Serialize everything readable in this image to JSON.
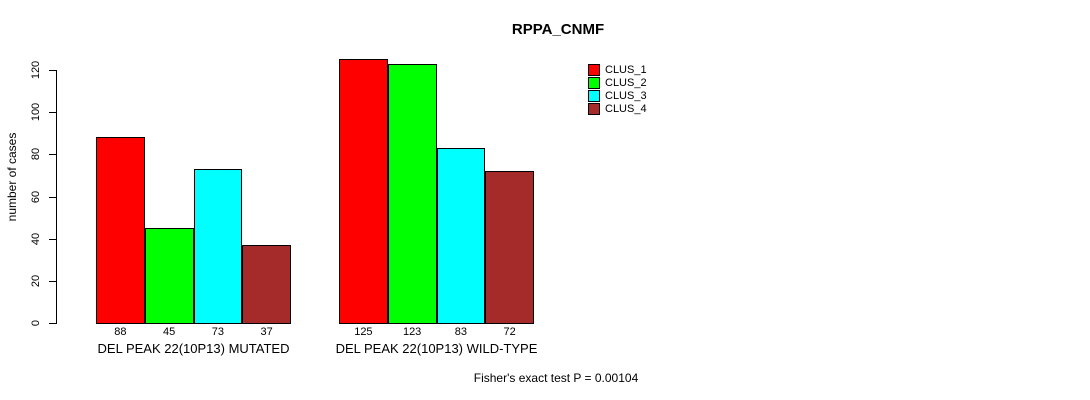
{
  "title": "RPPA_CNMF",
  "annotation": "Fisher's exact test P = 0.00104",
  "colors": {
    "clus_1": "#FF0000",
    "clus_2": "#00FF00",
    "clus_3": "#00FFFF",
    "clus_4": "#A52A2A",
    "axis": "#000000",
    "background": "#FFFFFF"
  },
  "chart_data": {
    "type": "bar",
    "title": "RPPA_CNMF",
    "xlabel": "",
    "ylabel": "number of cases",
    "ylim": [
      0,
      128
    ],
    "yticks": [
      0,
      20,
      40,
      60,
      80,
      100,
      120
    ],
    "grid": false,
    "legend_position": "right",
    "bar_value_labels": true,
    "categories": [
      "DEL PEAK 22(10P13) MUTATED",
      "DEL PEAK 22(10P13) WILD-TYPE"
    ],
    "series": [
      {
        "name": "CLUS_1",
        "color": "#FF0000",
        "values": [
          88,
          125
        ]
      },
      {
        "name": "CLUS_2",
        "color": "#00FF00",
        "values": [
          45,
          123
        ]
      },
      {
        "name": "CLUS_3",
        "color": "#00FFFF",
        "values": [
          73,
          83
        ]
      },
      {
        "name": "CLUS_4",
        "color": "#A52A2A",
        "values": [
          37,
          72
        ]
      }
    ],
    "annotation": "Fisher's exact test P = 0.00104"
  }
}
